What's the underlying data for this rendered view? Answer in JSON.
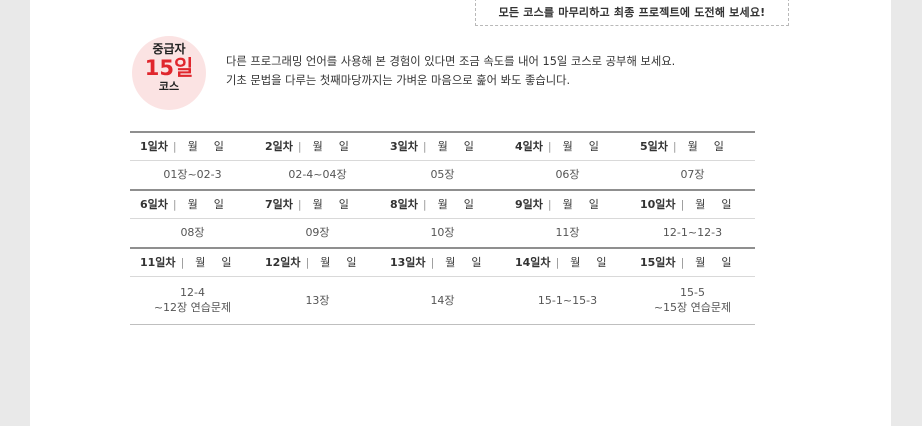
{
  "banner": "모든 코스를 마무리하고 최종 프로젝트에 도전해 보세요!",
  "badge": {
    "level": "중급자",
    "days": "15일",
    "course": "코스"
  },
  "description": [
    "다른 프로그래밍 언어를 사용해 본 경험이 있다면 조금 속도를 내어 15일 코스로 공부해 보세요.",
    "기초 문법을 다루는 첫째마당까지는 가벼운 마음으로 훑어 봐도 좋습니다."
  ],
  "schedule": {
    "month_label": "월",
    "day_label": "일",
    "separator": "|",
    "rows": [
      {
        "days": [
          "1일차",
          "2일차",
          "3일차",
          "4일차",
          "5일차"
        ],
        "content": [
          [
            "01장~02-3"
          ],
          [
            "02-4~04장"
          ],
          [
            "05장"
          ],
          [
            "06장"
          ],
          [
            "07장"
          ]
        ]
      },
      {
        "days": [
          "6일차",
          "7일차",
          "8일차",
          "9일차",
          "10일차"
        ],
        "content": [
          [
            "08장"
          ],
          [
            "09장"
          ],
          [
            "10장"
          ],
          [
            "11장"
          ],
          [
            "12-1~12-3"
          ]
        ]
      },
      {
        "days": [
          "11일차",
          "12일차",
          "13일차",
          "14일차",
          "15일차"
        ],
        "content": [
          [
            "12-4",
            "~12장 연습문제"
          ],
          [
            "13장"
          ],
          [
            "14장"
          ],
          [
            "15-1~15-3"
          ],
          [
            "15-5",
            "~15장 연습문제"
          ]
        ]
      }
    ]
  }
}
